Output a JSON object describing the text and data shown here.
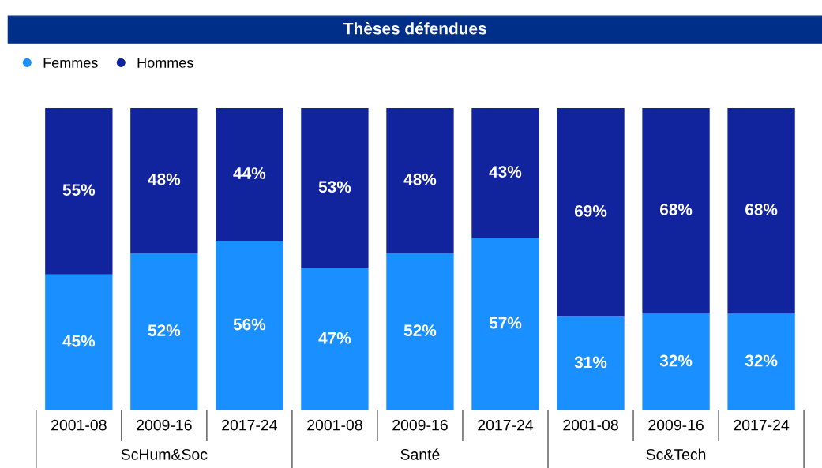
{
  "chart_data": {
    "type": "bar",
    "title": "Thèses défendues",
    "stacked": true,
    "data_labels": true,
    "categories": [
      "2001-08",
      "2009-16",
      "2017-24",
      "2001-08",
      "2009-16",
      "2017-24",
      "2001-08",
      "2009-16",
      "2017-24"
    ],
    "series": [
      {
        "name": "Femmes",
        "color": "#1a8fff",
        "values": [
          45,
          52,
          56,
          47,
          52,
          57,
          31,
          32,
          32
        ],
        "value_labels": [
          "45%",
          "52%",
          "56%",
          "47%",
          "52%",
          "57%",
          "31%",
          "32%",
          "32%"
        ]
      },
      {
        "name": "Hommes",
        "color": "#12239e",
        "values": [
          55,
          48,
          44,
          53,
          48,
          43,
          69,
          68,
          68
        ],
        "value_labels": [
          "55%",
          "48%",
          "44%",
          "53%",
          "48%",
          "43%",
          "69%",
          "68%",
          "68%"
        ]
      }
    ],
    "annotations": [
      "ScHum&Soc",
      "Santé",
      "Sc&Tech"
    ],
    "tick_labels": "x",
    "legend": "top left",
    "grid": false
  }
}
